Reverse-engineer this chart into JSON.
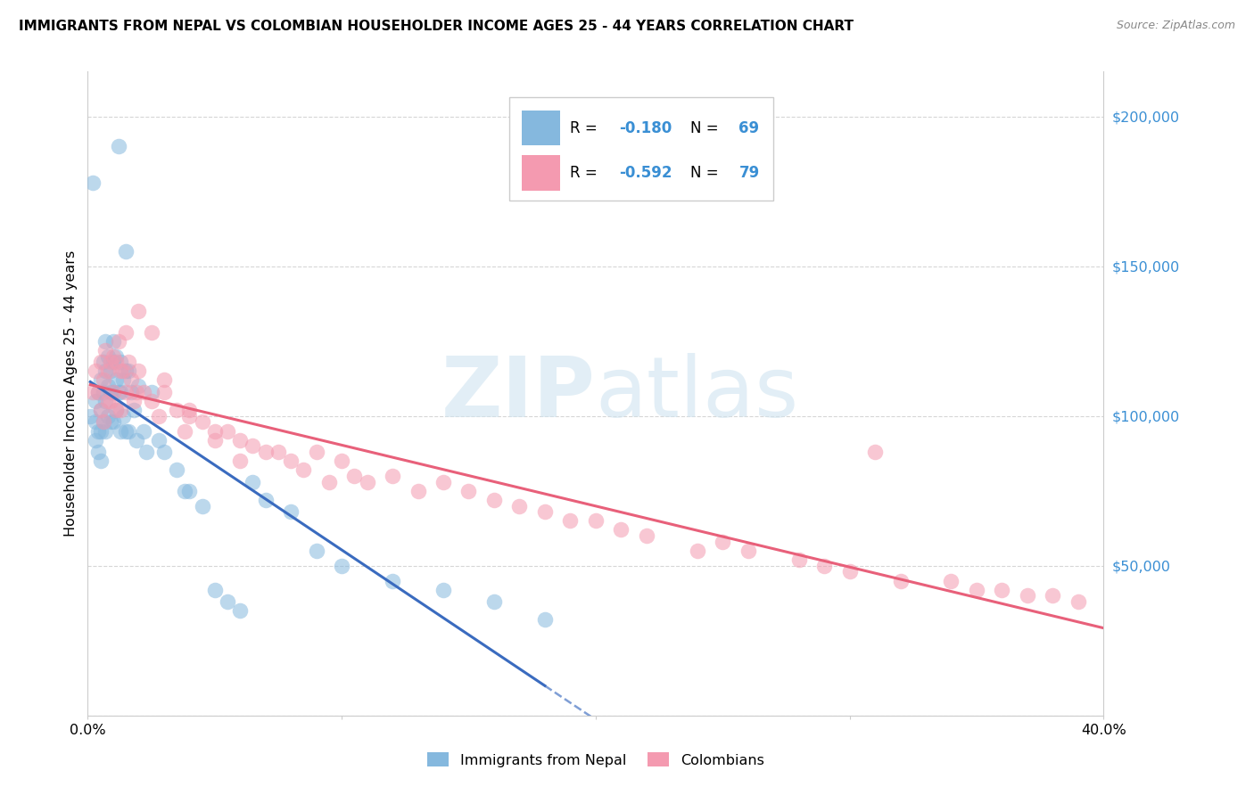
{
  "title": "IMMIGRANTS FROM NEPAL VS COLOMBIAN HOUSEHOLDER INCOME AGES 25 - 44 YEARS CORRELATION CHART",
  "source": "Source: ZipAtlas.com",
  "ylabel": "Householder Income Ages 25 - 44 years",
  "ytick_values": [
    0,
    50000,
    100000,
    150000,
    200000
  ],
  "ytick_labels": [
    "",
    "$50,000",
    "$100,000",
    "$150,000",
    "$200,000"
  ],
  "xtick_values": [
    0.0,
    0.1,
    0.2,
    0.3,
    0.4
  ],
  "xtick_labels": [
    "0.0%",
    "",
    "",
    "",
    "40.0%"
  ],
  "xlim": [
    0.0,
    0.4
  ],
  "ylim": [
    0,
    215000
  ],
  "nepal_color": "#85b8de",
  "colombia_color": "#f49ab0",
  "nepal_line_color": "#3a6bbf",
  "colombia_line_color": "#e8607a",
  "ytick_color": "#3a8fd4",
  "background_color": "#ffffff",
  "grid_color": "#cccccc",
  "nepal_R": "-0.180",
  "nepal_N": "69",
  "colombia_R": "-0.592",
  "colombia_N": "79",
  "nepal_label": "Immigrants from Nepal",
  "colombia_label": "Colombians",
  "nepal_x": [
    0.001,
    0.002,
    0.003,
    0.003,
    0.003,
    0.004,
    0.004,
    0.004,
    0.005,
    0.005,
    0.005,
    0.005,
    0.006,
    0.006,
    0.006,
    0.007,
    0.007,
    0.007,
    0.007,
    0.008,
    0.008,
    0.008,
    0.009,
    0.009,
    0.009,
    0.01,
    0.01,
    0.01,
    0.01,
    0.011,
    0.011,
    0.011,
    0.012,
    0.012,
    0.013,
    0.013,
    0.013,
    0.014,
    0.014,
    0.015,
    0.015,
    0.015,
    0.016,
    0.016,
    0.017,
    0.018,
    0.019,
    0.02,
    0.022,
    0.023,
    0.025,
    0.028,
    0.03,
    0.035,
    0.038,
    0.04,
    0.045,
    0.05,
    0.055,
    0.06,
    0.065,
    0.07,
    0.08,
    0.09,
    0.1,
    0.12,
    0.14,
    0.16,
    0.18
  ],
  "nepal_y": [
    100000,
    178000,
    105000,
    98000,
    92000,
    108000,
    95000,
    88000,
    112000,
    102000,
    95000,
    85000,
    118000,
    108000,
    98000,
    125000,
    115000,
    105000,
    95000,
    120000,
    110000,
    100000,
    115000,
    108000,
    98000,
    125000,
    118000,
    108000,
    98000,
    120000,
    112000,
    102000,
    190000,
    108000,
    118000,
    108000,
    95000,
    112000,
    100000,
    155000,
    115000,
    95000,
    115000,
    95000,
    108000,
    102000,
    92000,
    110000,
    95000,
    88000,
    108000,
    92000,
    88000,
    82000,
    75000,
    75000,
    70000,
    42000,
    38000,
    35000,
    78000,
    72000,
    68000,
    55000,
    50000,
    45000,
    42000,
    38000,
    32000
  ],
  "colombia_x": [
    0.002,
    0.003,
    0.004,
    0.005,
    0.005,
    0.006,
    0.006,
    0.007,
    0.008,
    0.008,
    0.009,
    0.009,
    0.01,
    0.01,
    0.011,
    0.011,
    0.012,
    0.013,
    0.013,
    0.014,
    0.015,
    0.015,
    0.016,
    0.017,
    0.018,
    0.019,
    0.02,
    0.022,
    0.025,
    0.028,
    0.03,
    0.035,
    0.038,
    0.04,
    0.045,
    0.05,
    0.055,
    0.06,
    0.065,
    0.07,
    0.075,
    0.08,
    0.085,
    0.09,
    0.095,
    0.1,
    0.105,
    0.11,
    0.12,
    0.13,
    0.14,
    0.15,
    0.16,
    0.17,
    0.18,
    0.19,
    0.2,
    0.21,
    0.22,
    0.24,
    0.25,
    0.26,
    0.28,
    0.29,
    0.3,
    0.31,
    0.32,
    0.34,
    0.35,
    0.36,
    0.37,
    0.38,
    0.39,
    0.02,
    0.025,
    0.03,
    0.04,
    0.05,
    0.06
  ],
  "colombia_y": [
    108000,
    115000,
    108000,
    118000,
    102000,
    112000,
    98000,
    122000,
    115000,
    105000,
    118000,
    105000,
    120000,
    108000,
    118000,
    102000,
    125000,
    115000,
    102000,
    115000,
    128000,
    108000,
    118000,
    112000,
    105000,
    108000,
    115000,
    108000,
    105000,
    100000,
    112000,
    102000,
    95000,
    102000,
    98000,
    95000,
    95000,
    92000,
    90000,
    88000,
    88000,
    85000,
    82000,
    88000,
    78000,
    85000,
    80000,
    78000,
    80000,
    75000,
    78000,
    75000,
    72000,
    70000,
    68000,
    65000,
    65000,
    62000,
    60000,
    55000,
    58000,
    55000,
    52000,
    50000,
    48000,
    88000,
    45000,
    45000,
    42000,
    42000,
    40000,
    40000,
    38000,
    135000,
    128000,
    108000,
    100000,
    92000,
    85000
  ]
}
